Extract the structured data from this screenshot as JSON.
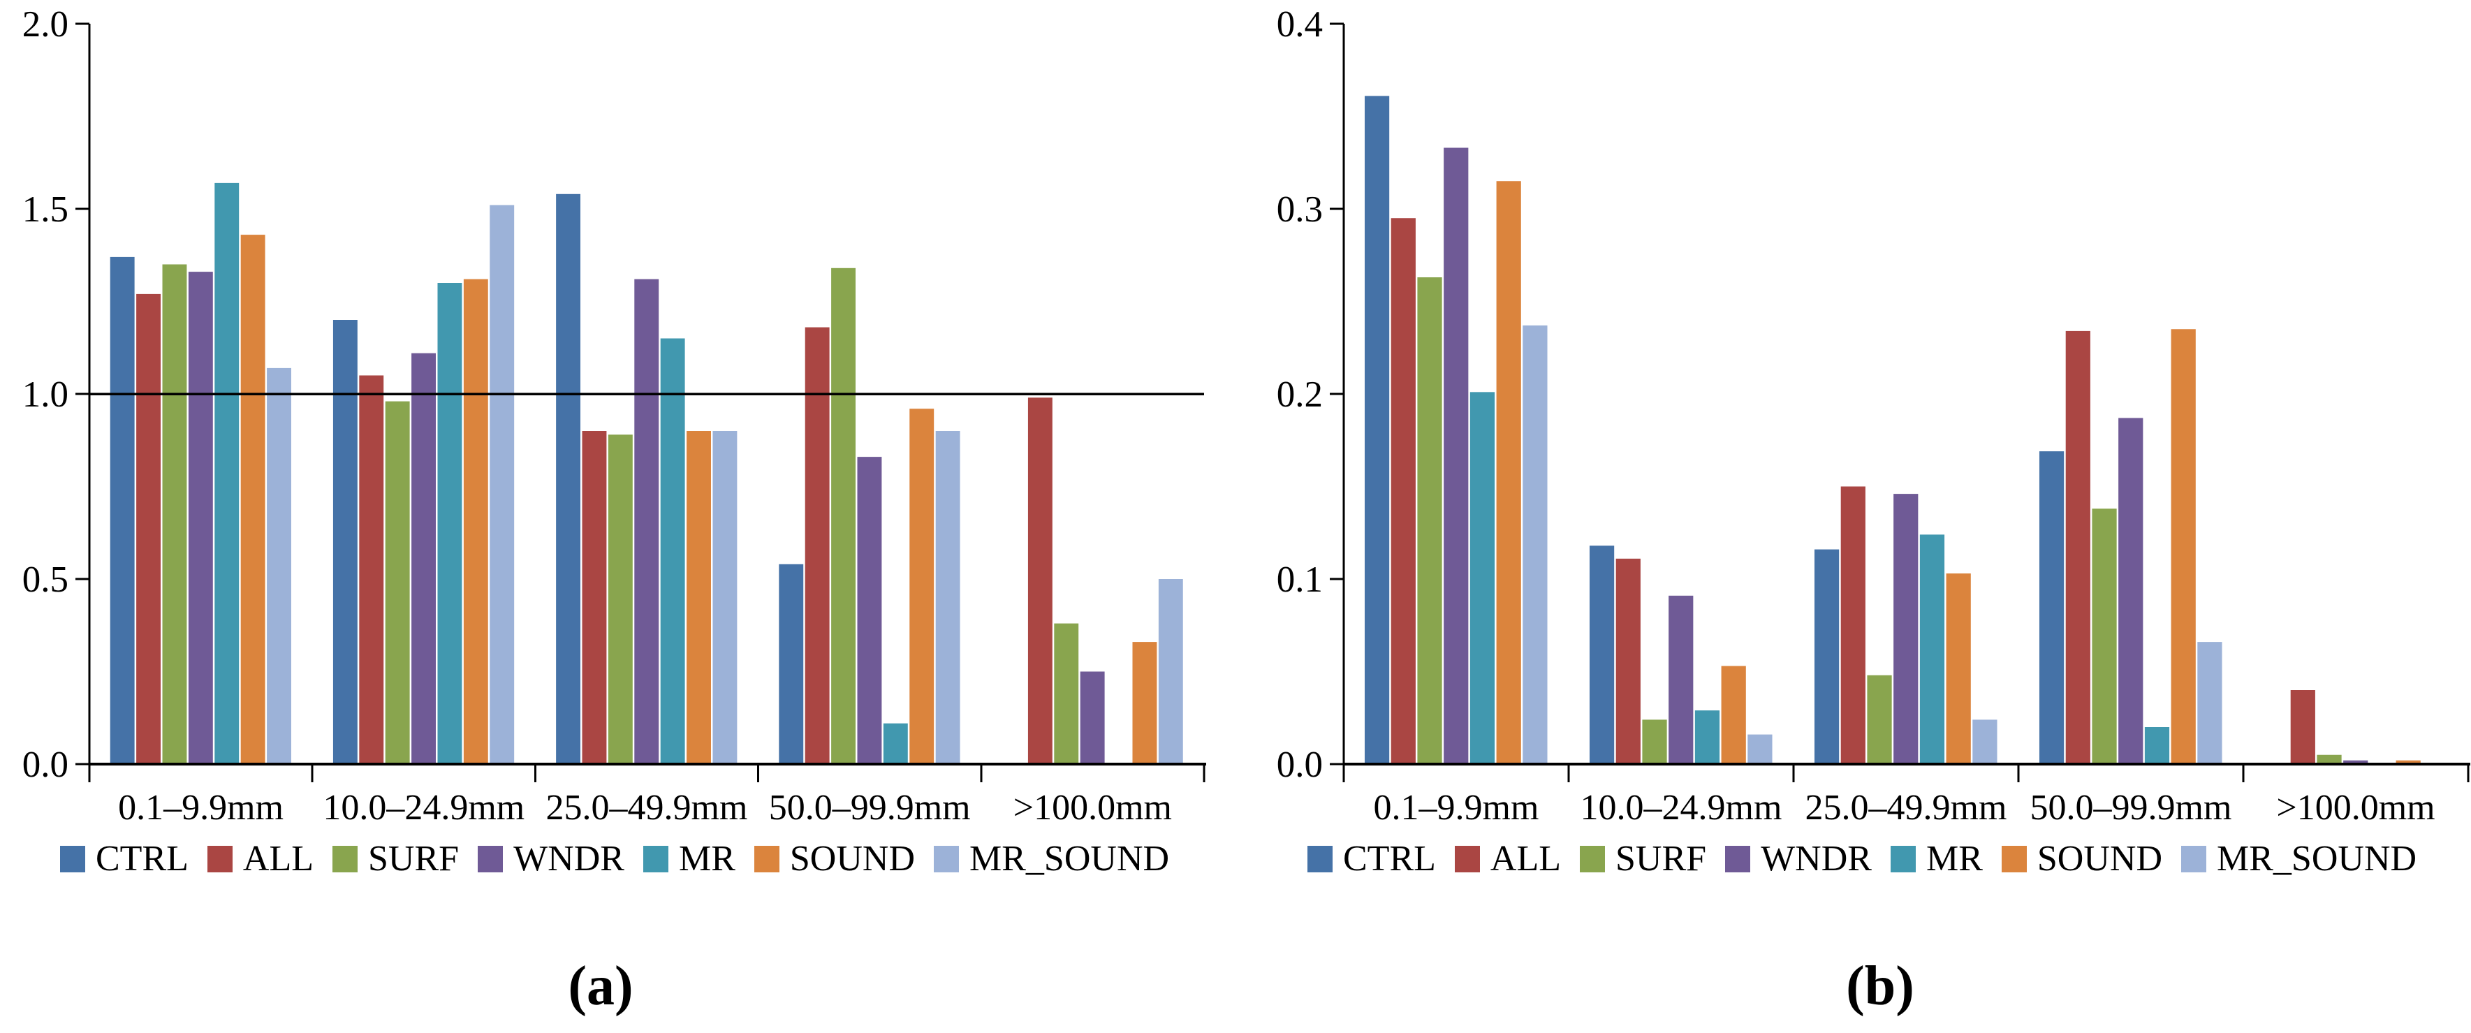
{
  "figure": {
    "background": "#FFFFFF",
    "axis_color": "#000000",
    "text_color": "#000000"
  },
  "chart_data": [
    {
      "id": "a",
      "panel_label": "(a)",
      "type": "bar",
      "title": "",
      "xlabel": "",
      "ylabel": "",
      "grid": false,
      "legend_position": "bottom",
      "ylim": [
        0,
        2.0
      ],
      "ytick_labels": [
        "0.0",
        "0.5",
        "1.0",
        "1.5",
        "2.0"
      ],
      "ref_line": 1.0,
      "categories": [
        "0.1–9.9mm",
        "10.0–24.9mm",
        "25.0–49.9mm",
        "50.0–99.9mm",
        ">100.0mm"
      ],
      "series": [
        {
          "name": "CTRL",
          "color": "#4572A7",
          "values": [
            1.37,
            1.2,
            1.54,
            0.54,
            0
          ]
        },
        {
          "name": "ALL",
          "color": "#AA4643",
          "values": [
            1.27,
            1.05,
            0.9,
            1.18,
            0.99
          ]
        },
        {
          "name": "SURF",
          "color": "#89A54E",
          "values": [
            1.35,
            0.98,
            0.89,
            1.34,
            0.38
          ]
        },
        {
          "name": "WNDR",
          "color": "#6F5A96",
          "values": [
            1.33,
            1.11,
            1.31,
            0.83,
            0.25
          ]
        },
        {
          "name": "MR",
          "color": "#4198AF",
          "values": [
            1.57,
            1.3,
            1.15,
            0.11,
            0
          ]
        },
        {
          "name": "SOUND",
          "color": "#DB843D",
          "values": [
            1.43,
            1.31,
            0.9,
            0.96,
            0.33
          ]
        },
        {
          "name": "MR_SOUND",
          "color": "#9CB2D8",
          "values": [
            1.07,
            1.51,
            0.9,
            0.9,
            0.5
          ]
        }
      ]
    },
    {
      "id": "b",
      "panel_label": "(b)",
      "type": "bar",
      "title": "",
      "xlabel": "",
      "ylabel": "",
      "grid": false,
      "legend_position": "bottom",
      "ylim": [
        0,
        0.4
      ],
      "ytick_labels": [
        "0.0",
        "0.1",
        "0.2",
        "0.3",
        "0.4"
      ],
      "ref_line": null,
      "categories": [
        "0.1–9.9mm",
        "10.0–24.9mm",
        "25.0–49.9mm",
        "50.0–99.9mm",
        ">100.0mm"
      ],
      "series": [
        {
          "name": "CTRL",
          "color": "#4572A7",
          "values": [
            0.361,
            0.118,
            0.116,
            0.169,
            0
          ]
        },
        {
          "name": "ALL",
          "color": "#AA4643",
          "values": [
            0.295,
            0.111,
            0.15,
            0.234,
            0.04
          ]
        },
        {
          "name": "SURF",
          "color": "#89A54E",
          "values": [
            0.263,
            0.024,
            0.048,
            0.138,
            0.005
          ]
        },
        {
          "name": "WNDR",
          "color": "#6F5A96",
          "values": [
            0.333,
            0.091,
            0.146,
            0.187,
            0.002
          ]
        },
        {
          "name": "MR",
          "color": "#4198AF",
          "values": [
            0.201,
            0.029,
            0.124,
            0.02,
            0
          ]
        },
        {
          "name": "SOUND",
          "color": "#DB843D",
          "values": [
            0.315,
            0.053,
            0.103,
            0.235,
            0.002
          ]
        },
        {
          "name": "MR_SOUND",
          "color": "#9CB2D8",
          "values": [
            0.237,
            0.016,
            0.024,
            0.066,
            0
          ]
        }
      ]
    }
  ]
}
